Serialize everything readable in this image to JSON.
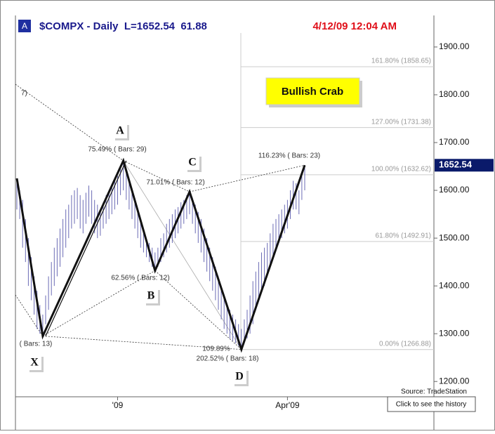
{
  "chart_data": {
    "type": "ohlc",
    "header_badge": "A",
    "title": "$COMPX - Daily  L=1652.54  61.88",
    "timestamp": "4/12/09 12:04 AM",
    "callout": "Bullish Crab",
    "source": "Source: TradeStation",
    "history_button": "Click to see the history",
    "last_price": 1652.54,
    "categories": [
      null,
      null,
      null,
      null,
      null,
      null,
      null,
      null,
      null,
      null,
      null,
      null,
      null,
      null,
      null,
      null,
      null,
      null,
      null,
      null,
      null,
      null,
      null,
      null,
      null,
      null,
      null,
      null,
      null,
      null,
      null,
      null,
      null,
      null,
      null,
      "'09",
      null,
      null,
      null,
      null,
      null,
      null,
      null,
      null,
      null,
      null,
      null,
      null,
      null,
      null,
      null,
      null,
      null,
      null,
      null,
      null,
      null,
      null,
      null,
      null,
      null,
      null,
      null,
      null,
      null,
      null,
      null,
      null,
      null,
      null,
      null,
      null,
      null,
      null,
      null,
      null,
      null,
      null,
      null,
      null,
      null,
      null,
      null,
      null,
      null,
      null,
      null,
      null,
      null,
      null,
      null,
      null,
      null,
      null,
      "Apr'09",
      null,
      null,
      null,
      null,
      null,
      null
    ],
    "high": [
      1625,
      1600,
      1580,
      1540,
      1500,
      1460,
      1420,
      1390,
      1360,
      1340,
      1380,
      1420,
      1450,
      1480,
      1500,
      1520,
      1540,
      1560,
      1570,
      1590,
      1600,
      1605,
      1590,
      1580,
      1595,
      1610,
      1600,
      1580,
      1570,
      1560,
      1575,
      1590,
      1600,
      1610,
      1620,
      1630,
      1645,
      1662,
      1640,
      1620,
      1600,
      1580,
      1560,
      1540,
      1520,
      1500,
      1490,
      1480,
      1470,
      1480,
      1500,
      1510,
      1530,
      1540,
      1550,
      1560,
      1565,
      1575,
      1580,
      1590,
      1597,
      1585,
      1570,
      1555,
      1540,
      1520,
      1500,
      1480,
      1460,
      1440,
      1420,
      1400,
      1380,
      1360,
      1350,
      1340,
      1330,
      1320,
      1310,
      1330,
      1350,
      1380,
      1410,
      1430,
      1450,
      1470,
      1480,
      1490,
      1510,
      1530,
      1540,
      1550,
      1560,
      1570,
      1580,
      1600,
      1620,
      1615,
      1600,
      1630,
      1652.54
    ],
    "low": [
      1560,
      1540,
      1480,
      1450,
      1400,
      1370,
      1340,
      1310,
      1300,
      1295,
      1320,
      1350,
      1380,
      1400,
      1420,
      1440,
      1460,
      1480,
      1500,
      1520,
      1530,
      1540,
      1520,
      1510,
      1530,
      1545,
      1530,
      1510,
      1500,
      1505,
      1520,
      1530,
      1540,
      1550,
      1560,
      1570,
      1590,
      1600,
      1580,
      1560,
      1540,
      1520,
      1500,
      1480,
      1470,
      1460,
      1450,
      1440,
      1432,
      1440,
      1450,
      1460,
      1470,
      1480,
      1490,
      1500,
      1510,
      1520,
      1530,
      1540,
      1550,
      1530,
      1510,
      1490,
      1470,
      1450,
      1430,
      1410,
      1390,
      1370,
      1350,
      1330,
      1310,
      1300,
      1290,
      1285,
      1280,
      1275,
      1267,
      1280,
      1290,
      1300,
      1320,
      1350,
      1370,
      1390,
      1400,
      1420,
      1440,
      1460,
      1480,
      1490,
      1500,
      1510,
      1520,
      1540,
      1560,
      1560,
      1550,
      1580,
      1600
    ],
    "color": "#6b6bb5",
    "ylim": [
      1168,
      1966
    ],
    "yticks": [
      {
        "value": 1200,
        "label": "1200.00"
      },
      {
        "value": 1300,
        "label": "1300.00"
      },
      {
        "value": 1400,
        "label": "1400.00"
      },
      {
        "value": 1500,
        "label": "1500.00"
      },
      {
        "value": 1600,
        "label": "1600.00"
      },
      {
        "value": 1700,
        "label": "1700.00"
      },
      {
        "value": 1800,
        "label": "1800.00"
      },
      {
        "value": 1900,
        "label": "1900.00"
      }
    ],
    "pattern_labels": [
      "X",
      "A",
      "B",
      "C",
      "D"
    ],
    "annotations": [
      "7)",
      "75.49% ( Bars: 29)",
      "71.01% ( Bars: 12)",
      "62.56% ( Bars: 12)",
      "116.23% ( Bars: 23)",
      "( Bars: 13)",
      "109.89%",
      "202.52% ( Bars: 18)"
    ],
    "fib_levels": [
      {
        "value": 1858.65,
        "label": "161.80% (1858.65)"
      },
      {
        "value": 1731.38,
        "label": "127.00% (1731.38)"
      },
      {
        "value": 1632.62,
        "label": "100.00% (1632.62)"
      },
      {
        "value": 1492.91,
        "label": "61.80% (1492.91)"
      },
      {
        "value": 1266.88,
        "label": "0.00% (1266.88)"
      }
    ]
  }
}
